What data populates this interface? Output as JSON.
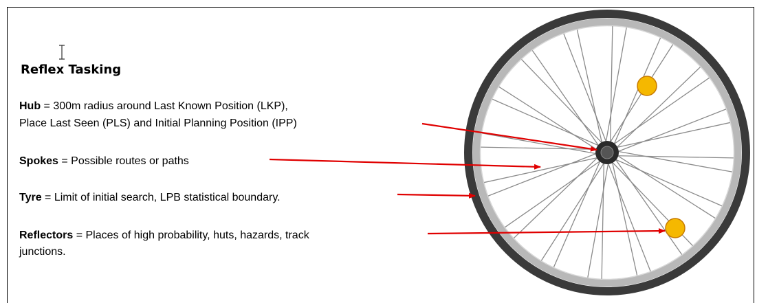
{
  "title": "Reflex Tasking",
  "items": [
    {
      "term": "Hub",
      "lines": [
        " = 300m radius around Last Known Position (LKP),",
        "Place Last Seen (PLS) and Initial Planning Position (IPP)"
      ]
    },
    {
      "term": "Spokes",
      "lines": [
        " = Possible routes or paths"
      ]
    },
    {
      "term": "Tyre",
      "lines": [
        " = Limit of initial search, LPB statistical  boundary."
      ]
    },
    {
      "term": "Reflectors",
      "lines": [
        " = Places  of high probability,  huts, hazards,  track",
        "junctions."
      ]
    }
  ]
}
